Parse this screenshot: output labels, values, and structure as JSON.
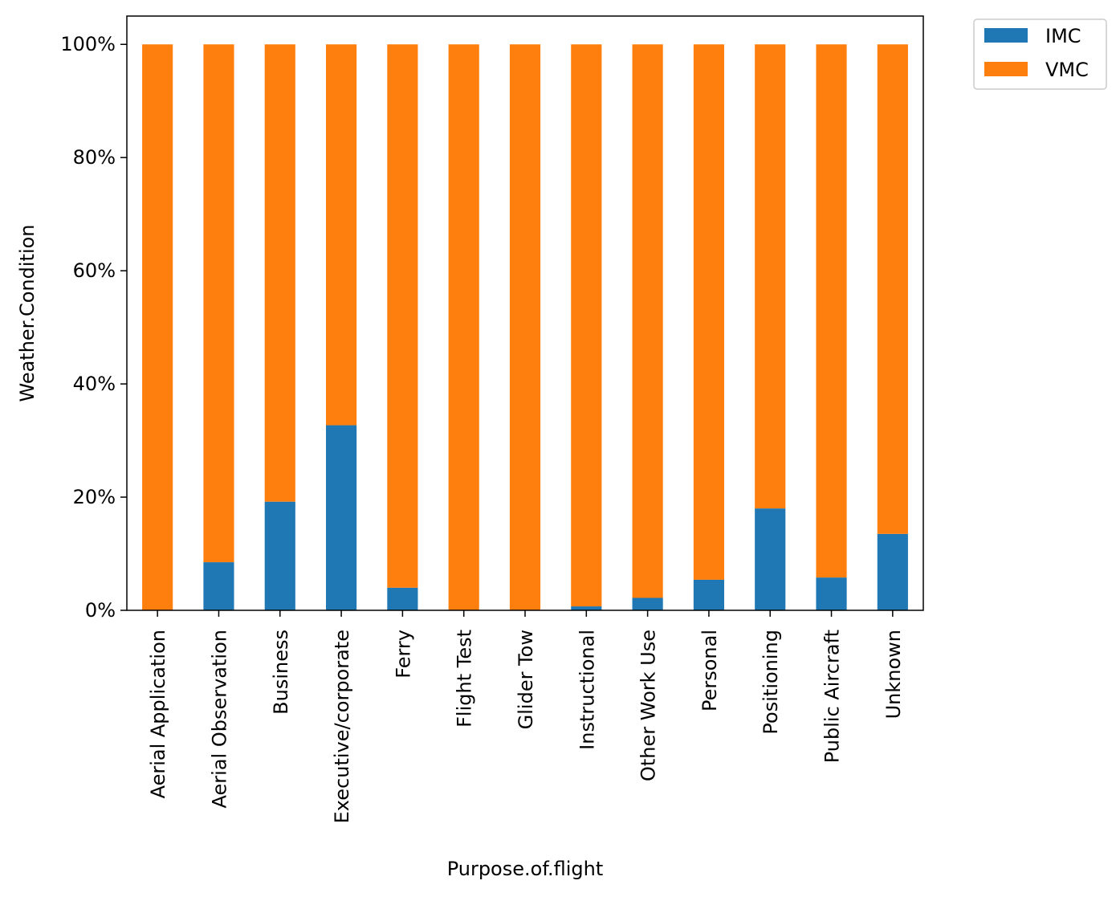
{
  "chart_data": {
    "type": "bar",
    "stacked": true,
    "normalized_percent": true,
    "title": "",
    "xlabel": "Purpose.of.flight",
    "ylabel": "Weather.Condition",
    "ylim": [
      0,
      105
    ],
    "yticks": [
      0,
      20,
      40,
      60,
      80,
      100
    ],
    "ytick_labels": [
      "0%",
      "20%",
      "40%",
      "60%",
      "80%",
      "100%"
    ],
    "grid": false,
    "legend_position": "outside-top-right",
    "categories": [
      "Aerial Application",
      "Aerial Observation",
      "Business",
      "Executive/corporate",
      "Ferry",
      "Flight Test",
      "Glider Tow",
      "Instructional",
      "Other Work Use",
      "Personal",
      "Positioning",
      "Public Aircraft",
      "Unknown"
    ],
    "series": [
      {
        "name": "IMC",
        "color": "#1f77b4",
        "values": [
          0.0,
          8.5,
          19.2,
          32.7,
          4.0,
          0.0,
          0.0,
          0.7,
          2.2,
          5.4,
          18.0,
          5.8,
          13.5
        ]
      },
      {
        "name": "VMC",
        "color": "#ff7f0e",
        "values": [
          100.0,
          91.5,
          80.8,
          67.3,
          96.0,
          100.0,
          100.0,
          99.3,
          97.8,
          94.6,
          82.0,
          94.2,
          86.5
        ]
      }
    ]
  }
}
